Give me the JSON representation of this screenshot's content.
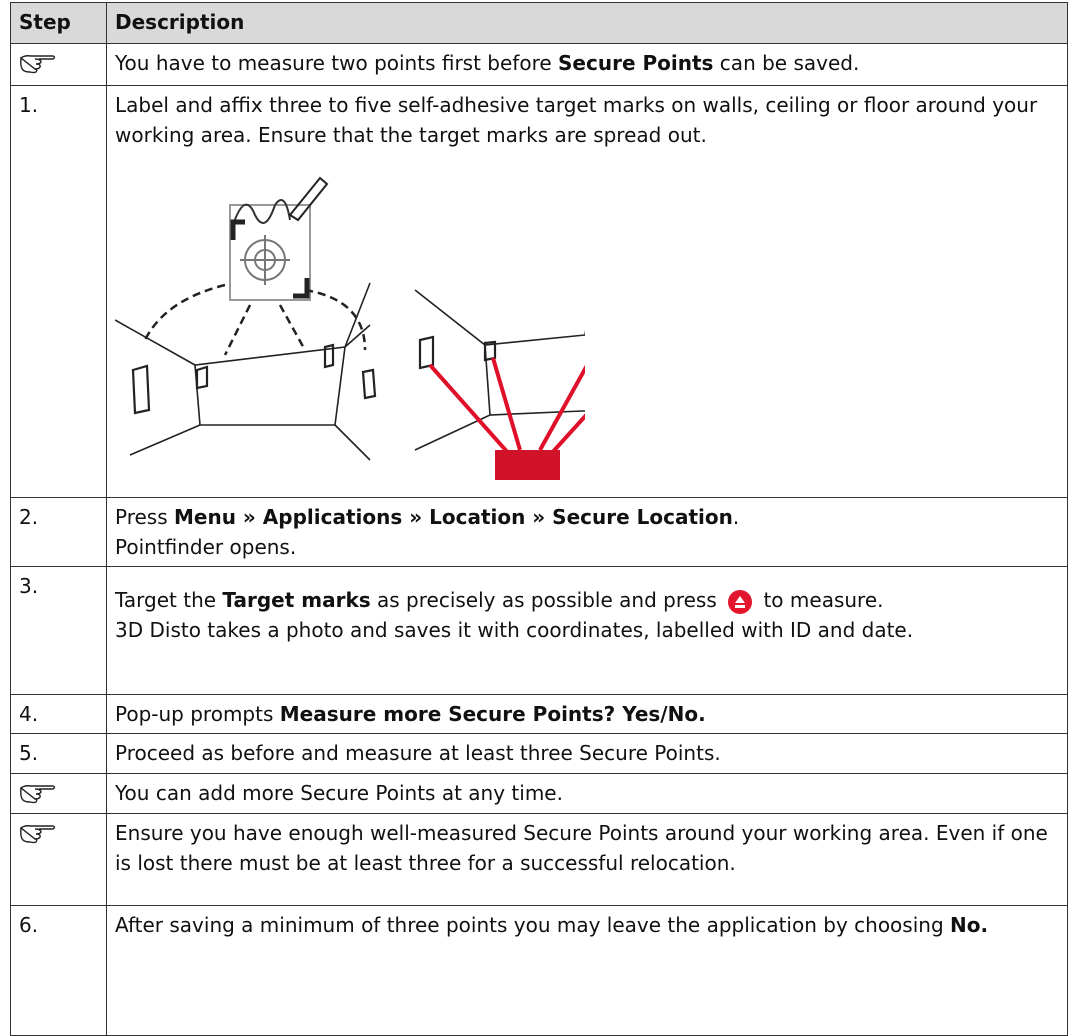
{
  "table": {
    "header": [
      "Step",
      "Description"
    ],
    "rows": [
      {
        "description": [
          "You have to measure two points first before ",
          "Secure Points",
          " can be saved."
        ]
      },
      {
        "step": "1.",
        "description": [
          "Label and affix three to five self-adhesive target marks on walls, ceiling or floor around your working area. Ensure that the target marks are spread out."
        ]
      },
      {
        "step": "2.",
        "description": [
          "Press ",
          "Menu » Applications » Location » Secure Location",
          ".",
          "Pointfinder opens."
        ]
      },
      {
        "step": "3.",
        "description": [
          "Target the ",
          "Target marks",
          " as precisely as possible and press ",
          " to measure.",
          "3D Disto takes a photo and saves it with coordinates, labelled with ID and date."
        ]
      },
      {
        "step": "4.",
        "description": [
          "Pop-up prompts ",
          "Measure more Secure Points? Yes/No."
        ]
      },
      {
        "step": "5.",
        "description": [
          "Proceed as before and measure at least three Secure Points."
        ]
      },
      {
        "description": [
          "You can add more Secure Points at any time."
        ]
      },
      {
        "description": [
          "Ensure you have enough well-measured Secure Points around your working area. Even if one is lost there must be at least three for a successful relocation."
        ]
      },
      {
        "step": "6.",
        "description": [
          "After saving a minimum of three points you may leave the application by choosing ",
          "No."
        ]
      }
    ]
  }
}
